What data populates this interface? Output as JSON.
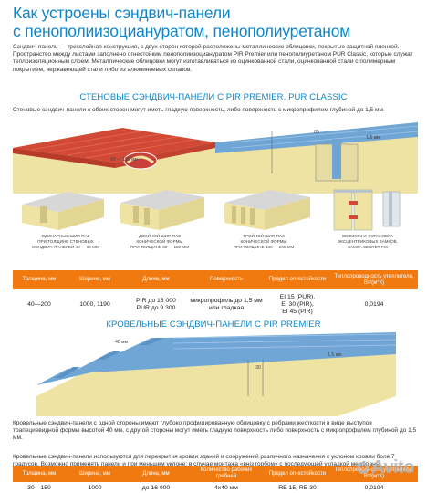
{
  "header": {
    "title_line1": "Как устроены сэндвич-панели",
    "title_line2": "с пенополиизоциануратом, пенополиуретаном"
  },
  "intro": "Сэндвич-панель — трехслойная конструкция, с двух сторон которой расположены металлические облицовки, покрытые защитной пленкой. Пространство между листами заполнено огнестойким пенополиизоциануратом PIR Premier или пенополиуретаном PUR Classic, которые служат теплоизоляционным слоем. Металлические облицовки могут изготавливаться из оцинкованной стали, оцинкованной стали с полимерным покрытием, нержавеющей стали либо из алюминиевых сплавов.",
  "wall": {
    "title": "СТЕНОВЫЕ СЭНДВИЧ-ПАНЕЛИ С PIR PREMIER, PUR CLASSIC",
    "description": "Стеновые сэндвич-панели с обоих сторон могут иметь гладкую поверхность, либо поверхность с микропрофилем глубиной до 1,5 мм.",
    "dims": {
      "a": "40 — 150 мм",
      "b": "85",
      "c": "1,5 мм"
    },
    "captions": [
      "ОДИНАРНЫЙ ШИП-ПАЗ\nПРИ ТОЛЩИНЕ СТЕНОВЫХ\nСЭНДВИЧ-ПАНЕЛЕЙ 40 — 60 ММ",
      "ДВОЙНОЙ ШИП-ПАЗ\nКОНИЧЕСКОЙ ФОРМЫ\nПРИ ТОЛЩИНЕ 80 — 150 ММ",
      "ТРОЙНОЙ ШИП-ПАЗ\nКОНИЧЕСКОЙ ФОРМЫ\nПРИ ТОЛЩИНЕ 180 — 200 ММ",
      "ВОЗМОЖНА УСТАНОВКА\nЭКСЦЕНТРИКОВЫХ ЗАМКОВ,\nЗАМКА SECRET FIX"
    ],
    "table": {
      "headers": [
        "Толщина, мм",
        "Ширина, мм",
        "Длина, мм",
        "Поверхность",
        "Предел огнестойкости",
        "Теплопроводность утеплителя, Вт/(м°К)"
      ],
      "row": {
        "thickness": "40—200",
        "width": "1000, 1190",
        "length_1": "PIR до 16 000",
        "length_2": "PUR до 9 300",
        "surface": "микропрофиль до 1,5 мм или гладкая",
        "fire_1": "EI 15 (PUR),",
        "fire_2": "EI 30 (PIR),",
        "fire_3": "EI 45 (PIR)",
        "conductivity": "0,0194"
      }
    }
  },
  "roof": {
    "title": "КРОВЕЛЬНЫЕ СЭНДВИЧ-ПАНЕЛИ С PIR PREMIER",
    "dims": {
      "a": "40 мм",
      "b": "30",
      "c": "1,5 мм"
    },
    "description": "Кровельные сэндвич-панели с одной стороны имеют глубоко профилированную облицовку с ребрами жесткости в виде выступов трапециевидной формы высотой 40 мм, с другой стороны могут иметь гладкую поверхность либо поверхность с микропрофилем глубиной до 1,5 мм.",
    "usage": "Кровельные сэндвич-панели используются для перекрытия кровли зданий и сооружений различного назначения с уклоном кровли боле 7 градусов. Возможно применять панели и при меньшем уклоне: в случае монтажа «внiз горбом» с последующей укладкой мембраны.",
    "table": {
      "headers": [
        "Толщина, мм",
        "Ширина, мм",
        "Длина, мм",
        "Количество рабочих гребней",
        "Предел огнестойкости",
        "Теплопроводность утеплителя, Вт/(м°К)"
      ],
      "row": {
        "thickness": "30—150",
        "width": "1000",
        "length": "до 16 000",
        "ridges": "4x40 мм",
        "fire": "RE 15, RE 30",
        "conductivity": "0,0194"
      }
    }
  },
  "watermark": "Avito",
  "colors": {
    "accent_blue": "#0e86c8",
    "table_orange": "#f07a10",
    "foam": "#efe3a4",
    "panel_red": "#d24a35",
    "panel_blue": "#6fa6d6"
  }
}
